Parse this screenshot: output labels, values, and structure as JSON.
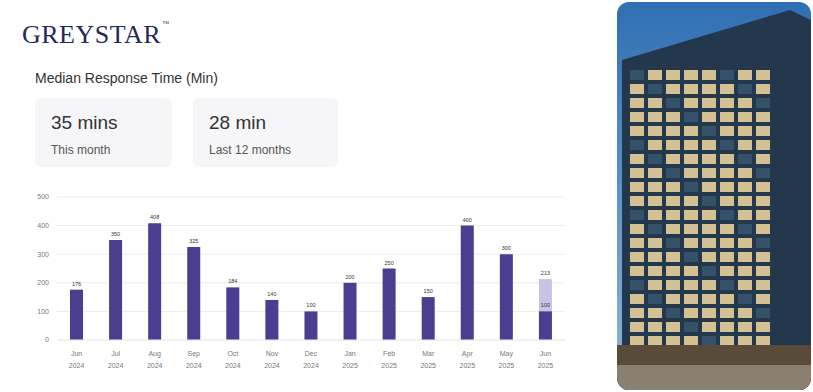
{
  "header": {
    "logo": "GREYSTAR",
    "trademark": "™"
  },
  "stats": [
    {
      "value": "35 mins",
      "label": "This month"
    },
    {
      "value": "28 min",
      "label": "Last 12 months"
    }
  ],
  "chart_data": {
    "type": "bar",
    "title": "Median Response Time (Min)",
    "categories": [
      "Jun 2024",
      "Jul 2024",
      "Aug 2024",
      "Sep 2024",
      "Oct 2024",
      "Nov 2024",
      "Dec 2024",
      "Jan 2025",
      "Feb 2025",
      "Mar 2025",
      "Apr 2025",
      "May 2025",
      "Jun 2025"
    ],
    "series": [
      {
        "color": "#4b3d8f",
        "values": [
          176,
          350,
          408,
          325,
          184,
          140,
          100,
          200,
          250,
          150,
          400,
          300,
          100
        ]
      },
      {
        "color": "#c9c3e6",
        "values": [
          null,
          null,
          null,
          null,
          null,
          null,
          null,
          null,
          null,
          null,
          null,
          null,
          213
        ]
      }
    ],
    "ylim": [
      0,
      500
    ],
    "yticks": [
      0,
      100,
      200,
      300,
      400,
      500
    ],
    "grid": true,
    "stacked": false,
    "data_labels": true
  }
}
